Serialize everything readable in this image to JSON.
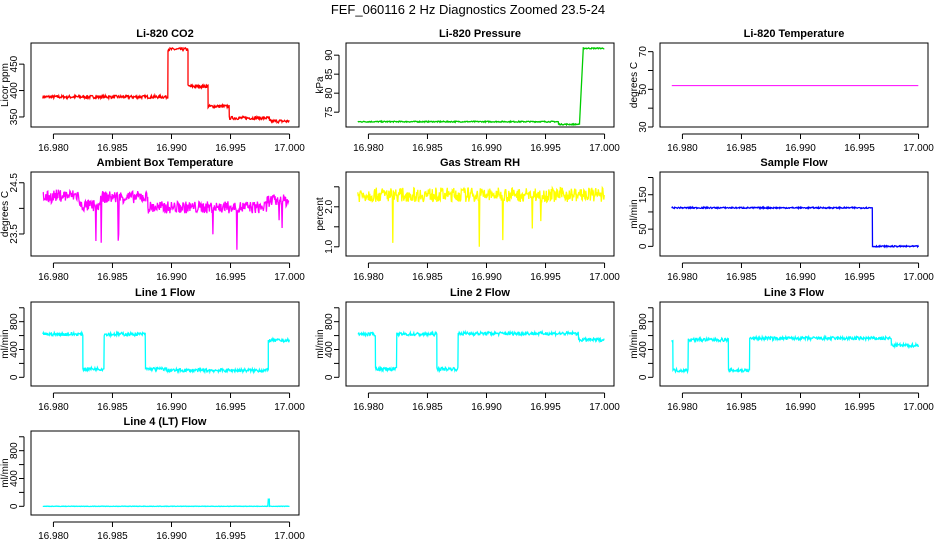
{
  "main_title": "FEF_060116  2 Hz Diagnostics Zoomed 23.5-24",
  "chart_data": [
    {
      "type": "line",
      "title": "Li-820 CO2",
      "ylabel": "Licor ppm",
      "color": "#ff0000",
      "xlim": [
        16.9781,
        17.0008
      ],
      "ylim": [
        331,
        490
      ],
      "xticks": [
        "16.980",
        "16.985",
        "16.990",
        "16.995",
        "17.000"
      ],
      "yticks": [
        350,
        400,
        450
      ],
      "ytick_labels": [
        "350",
        "400",
        "450"
      ],
      "segments": [
        [
          16.9791,
          16.9897,
          388
        ],
        [
          16.9897,
          16.9914,
          478
        ],
        [
          16.9914,
          16.9931,
          408
        ],
        [
          16.9931,
          16.9949,
          370
        ],
        [
          16.9949,
          16.9983,
          348
        ],
        [
          16.9983,
          17.0,
          342
        ]
      ]
    },
    {
      "type": "line",
      "title": "Li-820 Pressure",
      "ylabel": "kPa",
      "color": "#00cc00",
      "xlim": [
        16.9781,
        17.0008
      ],
      "ylim": [
        71.1,
        93.2
      ],
      "xticks": [
        "16.980",
        "16.985",
        "16.990",
        "16.995",
        "17.000"
      ],
      "yticks": [
        75,
        80,
        85,
        90
      ],
      "ytick_labels": [
        "75",
        "80",
        "85",
        "90"
      ],
      "segments": [
        [
          16.9791,
          16.9961,
          72.5
        ],
        [
          16.9961,
          16.9979,
          71.8
        ],
        [
          16.9982,
          17.0,
          91.8
        ]
      ]
    },
    {
      "type": "line",
      "title": "Li-820 Temperature",
      "ylabel": "degrees C",
      "color": "#ff00ff",
      "xlim": [
        16.9781,
        17.0008
      ],
      "ylim": [
        30,
        74.6
      ],
      "xticks": [
        "16.980",
        "16.985",
        "16.990",
        "16.995",
        "17.000"
      ],
      "yticks": [
        30,
        40,
        50,
        60,
        70
      ],
      "ytick_labels": [
        "30",
        "",
        "50",
        "",
        "70"
      ],
      "segments": [
        [
          16.9791,
          17.0,
          52
        ]
      ]
    },
    {
      "type": "line",
      "title": "Ambient Box Temperature",
      "ylabel": "degrees C",
      "color": "#ff00ff",
      "xlim": [
        16.9781,
        17.0008
      ],
      "ylim": [
        23.07,
        24.71
      ],
      "xticks": [
        "16.980",
        "16.985",
        "16.990",
        "16.995",
        "17.000"
      ],
      "yticks": [
        23.5,
        24.0,
        24.5
      ],
      "ytick_labels": [
        "23.5",
        "",
        "24.5"
      ],
      "segments": [
        [
          16.9791,
          16.98,
          24.22
        ],
        [
          16.98,
          16.9822,
          24.25
        ],
        [
          16.9822,
          16.984,
          24.05
        ],
        [
          16.984,
          16.988,
          24.22
        ],
        [
          16.988,
          16.9981,
          24.02
        ],
        [
          16.9981,
          17.0,
          24.15
        ]
      ]
    },
    {
      "type": "line",
      "title": "Gas Stream RH",
      "ylabel": "percent",
      "color": "#ffff00",
      "xlim": [
        16.9781,
        17.0008
      ],
      "ylim": [
        0.77,
        2.87
      ],
      "xticks": [
        "16.980",
        "16.985",
        "16.990",
        "16.995",
        "17.000"
      ],
      "yticks": [
        1.0,
        1.5,
        2.0,
        2.5
      ],
      "ytick_labels": [
        "1.0",
        "",
        "2.0",
        ""
      ],
      "segments": [
        [
          16.9791,
          17.0,
          2.3
        ]
      ]
    },
    {
      "type": "line",
      "title": "Sample Flow",
      "ylabel": "ml/min",
      "color": "#0000ff",
      "xlim": [
        16.9781,
        17.0008
      ],
      "ylim": [
        -28,
        216
      ],
      "xticks": [
        "16.980",
        "16.985",
        "16.990",
        "16.995",
        "17.000"
      ],
      "yticks": [
        0,
        50,
        100,
        150,
        200
      ],
      "ytick_labels": [
        "0",
        "50",
        "",
        "150",
        ""
      ],
      "segments": [
        [
          16.9791,
          16.9961,
          112
        ],
        [
          16.9961,
          17.0,
          0
        ]
      ]
    },
    {
      "type": "line",
      "title": "Line 1 Flow",
      "ylabel": "ml/min",
      "color": "#00ffff",
      "xlim": [
        16.9781,
        17.0008
      ],
      "ylim": [
        -125,
        1083
      ],
      "xticks": [
        "16.980",
        "16.985",
        "16.990",
        "16.995",
        "17.000"
      ],
      "yticks": [
        0,
        200,
        400,
        600,
        800,
        1000
      ],
      "ytick_labels": [
        "0",
        "",
        "400",
        "",
        "800",
        ""
      ],
      "segments": [
        [
          16.9791,
          16.9825,
          620
        ],
        [
          16.9825,
          16.9843,
          120
        ],
        [
          16.9843,
          16.9878,
          620
        ],
        [
          16.9878,
          16.9896,
          120
        ],
        [
          16.9896,
          16.9982,
          100
        ],
        [
          16.9982,
          17.0,
          530
        ]
      ]
    },
    {
      "type": "line",
      "title": "Line 2 Flow",
      "ylabel": "ml/min",
      "color": "#00ffff",
      "xlim": [
        16.9781,
        17.0008
      ],
      "ylim": [
        -125,
        1083
      ],
      "xticks": [
        "16.980",
        "16.985",
        "16.990",
        "16.995",
        "17.000"
      ],
      "yticks": [
        0,
        200,
        400,
        600,
        800,
        1000
      ],
      "ytick_labels": [
        "0",
        "",
        "400",
        "",
        "800",
        ""
      ],
      "segments": [
        [
          16.9791,
          16.9806,
          620
        ],
        [
          16.9806,
          16.9824,
          120
        ],
        [
          16.9824,
          16.9858,
          620
        ],
        [
          16.9858,
          16.9876,
          120
        ],
        [
          16.9876,
          16.9978,
          630
        ],
        [
          16.9978,
          17.0,
          540
        ]
      ]
    },
    {
      "type": "line",
      "title": "Line 3 Flow",
      "ylabel": "ml/min",
      "color": "#00ffff",
      "xlim": [
        16.9781,
        17.0008
      ],
      "ylim": [
        -125,
        1083
      ],
      "xticks": [
        "16.980",
        "16.985",
        "16.990",
        "16.995",
        "17.000"
      ],
      "yticks": [
        0,
        200,
        400,
        600,
        800,
        1000
      ],
      "ytick_labels": [
        "0",
        "",
        "400",
        "",
        "800",
        ""
      ],
      "segments": [
        [
          16.9791,
          16.9792,
          540
        ],
        [
          16.9792,
          16.9805,
          100
        ],
        [
          16.9805,
          16.9839,
          540
        ],
        [
          16.9839,
          16.9857,
          100
        ],
        [
          16.9857,
          16.9977,
          560
        ],
        [
          16.9977,
          17.0,
          460
        ]
      ]
    },
    {
      "type": "line",
      "title": "Line 4 (LT) Flow",
      "ylabel": "ml/min",
      "color": "#00ffff",
      "xlim": [
        16.9781,
        17.0008
      ],
      "ylim": [
        -125,
        1083
      ],
      "xticks": [
        "16.980",
        "16.985",
        "16.990",
        "16.995",
        "17.000"
      ],
      "yticks": [
        0,
        200,
        400,
        600,
        800,
        1000
      ],
      "ytick_labels": [
        "0",
        "",
        "400",
        "",
        "800",
        ""
      ],
      "segments": [
        [
          16.9791,
          16.9982,
          0
        ],
        [
          16.9982,
          16.9983,
          100
        ],
        [
          16.9983,
          17.0,
          0
        ]
      ]
    }
  ]
}
